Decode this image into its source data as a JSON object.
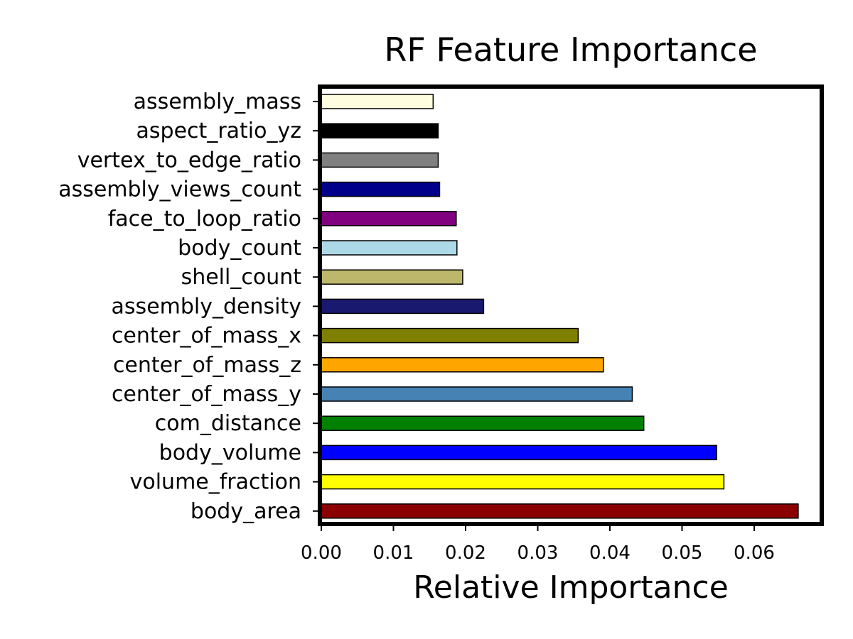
{
  "chart_data": {
    "type": "bar",
    "orientation": "horizontal",
    "title": "RF Feature Importance",
    "xlabel": "Relative Importance",
    "ylabel": "",
    "xlim": [
      0,
      0.0695
    ],
    "xticks": [
      "0.00",
      "0.01",
      "0.02",
      "0.03",
      "0.04",
      "0.05",
      "0.06"
    ],
    "grid": false,
    "legend": "none",
    "categories": [
      "assembly_mass",
      "aspect_ratio_yz",
      "vertex_to_edge_ratio",
      "assembly_views_count",
      "face_to_loop_ratio",
      "body_count",
      "shell_count",
      "assembly_density",
      "center_of_mass_x",
      "center_of_mass_z",
      "center_of_mass_y",
      "com_distance",
      "body_volume",
      "volume_fraction",
      "body_area"
    ],
    "values": [
      0.0155,
      0.0162,
      0.0162,
      0.0164,
      0.0187,
      0.0188,
      0.0196,
      0.0225,
      0.0356,
      0.0391,
      0.0431,
      0.0447,
      0.0548,
      0.0558,
      0.0661
    ],
    "colors": [
      "#fffde0",
      "#000000",
      "#808080",
      "#00008b",
      "#800080",
      "#add8e6",
      "#bdb76b",
      "#191970",
      "#808000",
      "#ffa500",
      "#4682b4",
      "#008000",
      "#0000ff",
      "#ffff00",
      "#8b0000"
    ]
  }
}
